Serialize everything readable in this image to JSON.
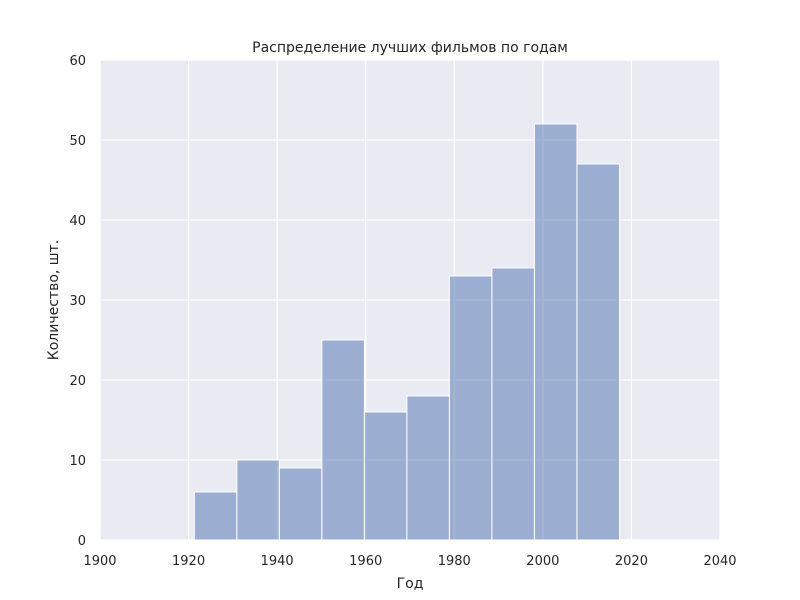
{
  "chart_data": {
    "type": "bar",
    "title": "Распределение лучших фильмов по годам",
    "xlabel": "Год",
    "ylabel": "Количество, шт.",
    "xlim": [
      1900,
      2040
    ],
    "ylim": [
      0,
      60
    ],
    "x_ticks": [
      1900,
      1920,
      1940,
      1960,
      1980,
      2000,
      2020,
      2040
    ],
    "y_ticks": [
      0,
      10,
      20,
      30,
      40,
      50,
      60
    ],
    "grid": true,
    "bins": [
      {
        "x0": 1921.3,
        "x1": 1930.9,
        "value": 6
      },
      {
        "x0": 1930.9,
        "x1": 1940.5,
        "value": 10
      },
      {
        "x0": 1940.5,
        "x1": 1950.1,
        "value": 9
      },
      {
        "x0": 1950.1,
        "x1": 1959.7,
        "value": 25
      },
      {
        "x0": 1959.7,
        "x1": 1969.3,
        "value": 16
      },
      {
        "x0": 1969.3,
        "x1": 1978.9,
        "value": 18
      },
      {
        "x0": 1978.9,
        "x1": 1988.5,
        "value": 33
      },
      {
        "x0": 1988.5,
        "x1": 1998.1,
        "value": 34
      },
      {
        "x0": 1998.1,
        "x1": 2007.7,
        "value": 52
      },
      {
        "x0": 2007.7,
        "x1": 2017.3,
        "value": 47
      }
    ],
    "colors": {
      "plot_background": "#EAEAF2",
      "grid": "#FFFFFF",
      "bar_fill": "#4C72B0",
      "bar_edge": "#FFFFFF"
    }
  }
}
